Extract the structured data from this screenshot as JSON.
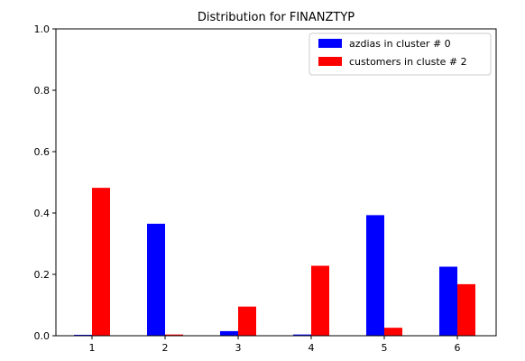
{
  "chart_data": {
    "type": "bar",
    "title": "Distribution for FINANZTYP",
    "xlabel": "",
    "ylabel": "",
    "categories": [
      "1",
      "2",
      "3",
      "4",
      "5",
      "6"
    ],
    "ylim": [
      0.0,
      1.0
    ],
    "yticks": [
      "0.0",
      "0.2",
      "0.4",
      "0.6",
      "0.8",
      "1.0"
    ],
    "grid": false,
    "legend_position": "top-right",
    "series": [
      {
        "name": "azdias in cluster # 0",
        "color": "#0000ff",
        "values": [
          0.003,
          0.365,
          0.015,
          0.004,
          0.393,
          0.225
        ]
      },
      {
        "name": "customers in cluste # 2",
        "color": "#ff0000",
        "values": [
          0.482,
          0.004,
          0.095,
          0.228,
          0.026,
          0.168
        ]
      }
    ]
  }
}
